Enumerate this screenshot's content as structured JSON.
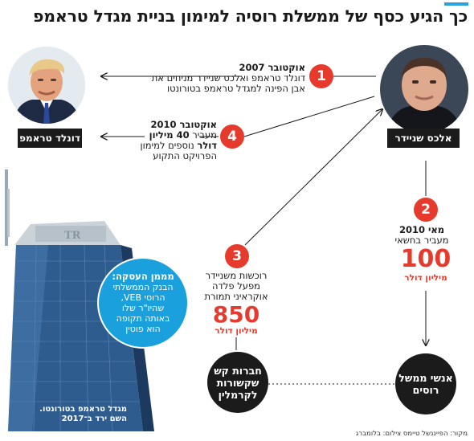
{
  "title": "כך הגיע כסף של ממשלת רוסיה למימון בניית מגדל טראמפ",
  "people": {
    "trump": {
      "name": "דונלד טראמפ"
    },
    "sater": {
      "name": "אלכס שניידר"
    }
  },
  "steps": [
    {
      "num": "1",
      "date": "אוקטובר 2007",
      "lines": [
        "דונלד טראמפ ואלכס שניידר מניחים את",
        "אבן הפינה למגדל טראמפ בטורונטו"
      ]
    },
    {
      "num": "2",
      "date": "מאי 2010",
      "text": "מעביר בחשאי",
      "amount": "100",
      "unit": "מיליון דולר"
    },
    {
      "num": "3",
      "lines": [
        "רוכשות משניידר",
        "מפעל פלדה",
        "אוקראיני תמורת"
      ],
      "amount": "850",
      "unit": "מיליון דולר"
    },
    {
      "num": "4",
      "date": "אוקטובר 2010",
      "line1_rest": "מעביר",
      "line1_bold": "40 מיליון",
      "line2_bold": "דולר",
      "line2_rest": "נוספים למימון",
      "line3": "הפרויקט התקוע"
    }
  ],
  "entities": {
    "russians": [
      "אנשי ממשל",
      "רוסים"
    ],
    "kremlin": [
      "חברות קש",
      "שקשורות",
      "לקרמלין"
    ]
  },
  "funder": {
    "title": "מממן העסקה:",
    "lines": [
      "הבנק הממשלתי",
      "הרוסי VEB,",
      "שהיו\"ר שלו",
      "באותה תקופה",
      "הוא פוטין"
    ]
  },
  "tower": {
    "sign": "TR",
    "caption": [
      "מגדל טראמפ בטורונטו.",
      "השם ירד ב־2017"
    ]
  },
  "source": "מקור: הפייננשל טיימס  צילום: בלומברג",
  "colors": {
    "accent_red": "#e63a2d",
    "accent_blue": "#1aa0dc",
    "dark": "#1b1b1b"
  }
}
